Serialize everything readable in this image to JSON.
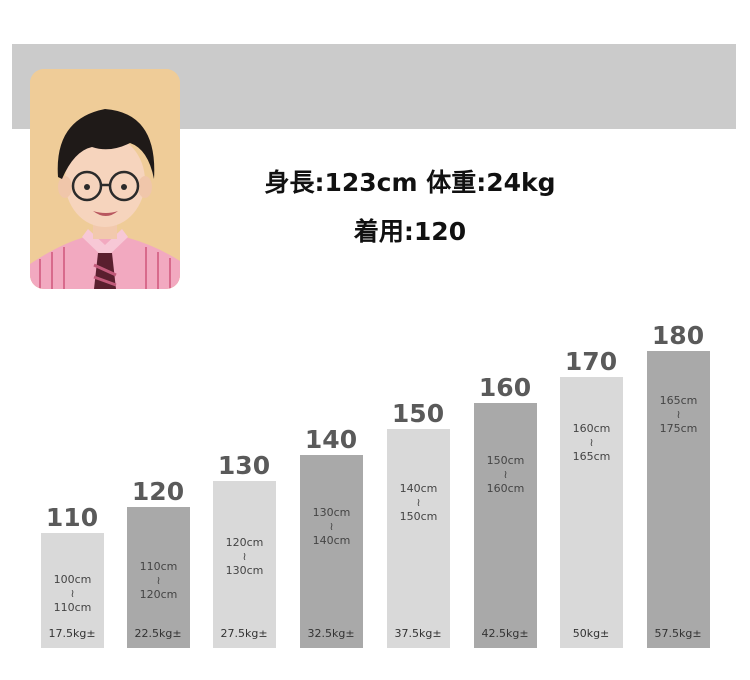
{
  "model": {
    "line1": "身長:123cm 体重:24kg",
    "line2": "着用:120"
  },
  "sizes": [
    {
      "size": "110",
      "height_min": "100cm",
      "tilde": "≀",
      "height_max": "110cm",
      "weight": "17.5kg±"
    },
    {
      "size": "120",
      "height_min": "110cm",
      "tilde": "≀",
      "height_max": "120cm",
      "weight": "22.5kg±"
    },
    {
      "size": "130",
      "height_min": "120cm",
      "tilde": "≀",
      "height_max": "130cm",
      "weight": "27.5kg±"
    },
    {
      "size": "140",
      "height_min": "130cm",
      "tilde": "≀",
      "height_max": "140cm",
      "weight": "32.5kg±"
    },
    {
      "size": "150",
      "height_min": "140cm",
      "tilde": "≀",
      "height_max": "150cm",
      "weight": "37.5kg±"
    },
    {
      "size": "160",
      "height_min": "150cm",
      "tilde": "≀",
      "height_max": "160cm",
      "weight": "42.5kg±"
    },
    {
      "size": "170",
      "height_min": "160cm",
      "tilde": "≀",
      "height_max": "165cm",
      "weight": "50kg±"
    },
    {
      "size": "180",
      "height_min": "165cm",
      "tilde": "≀",
      "height_max": "175cm",
      "weight": "57.5kg±"
    }
  ],
  "colors": {
    "bar_light": "#d9d9d9",
    "bar_dark": "#a9a9a9",
    "label": "#5a5a5a"
  }
}
